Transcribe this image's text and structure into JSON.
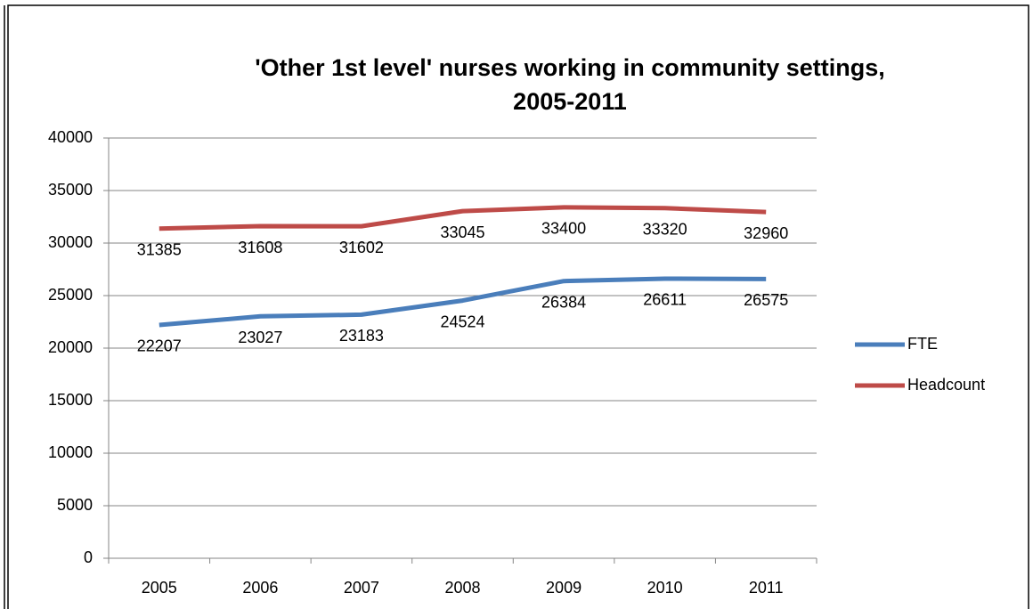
{
  "chart_data": {
    "type": "line",
    "title": [
      "'Other 1st level' nurses working in community settings,",
      "2005-2011"
    ],
    "categories": [
      "2005",
      "2006",
      "2007",
      "2008",
      "2009",
      "2010",
      "2011"
    ],
    "series": [
      {
        "name": "FTE",
        "color": "#4a7ebb",
        "values": [
          22207,
          23027,
          23183,
          24524,
          26384,
          26611,
          26575
        ]
      },
      {
        "name": "Headcount",
        "color": "#be4b48",
        "values": [
          31385,
          31608,
          31602,
          33045,
          33400,
          33320,
          32960
        ]
      }
    ],
    "ylim": [
      0,
      40000
    ],
    "yticks": [
      0,
      5000,
      10000,
      15000,
      20000,
      25000,
      30000,
      35000,
      40000
    ],
    "grid": true,
    "legend": "right",
    "data_labels": true
  }
}
